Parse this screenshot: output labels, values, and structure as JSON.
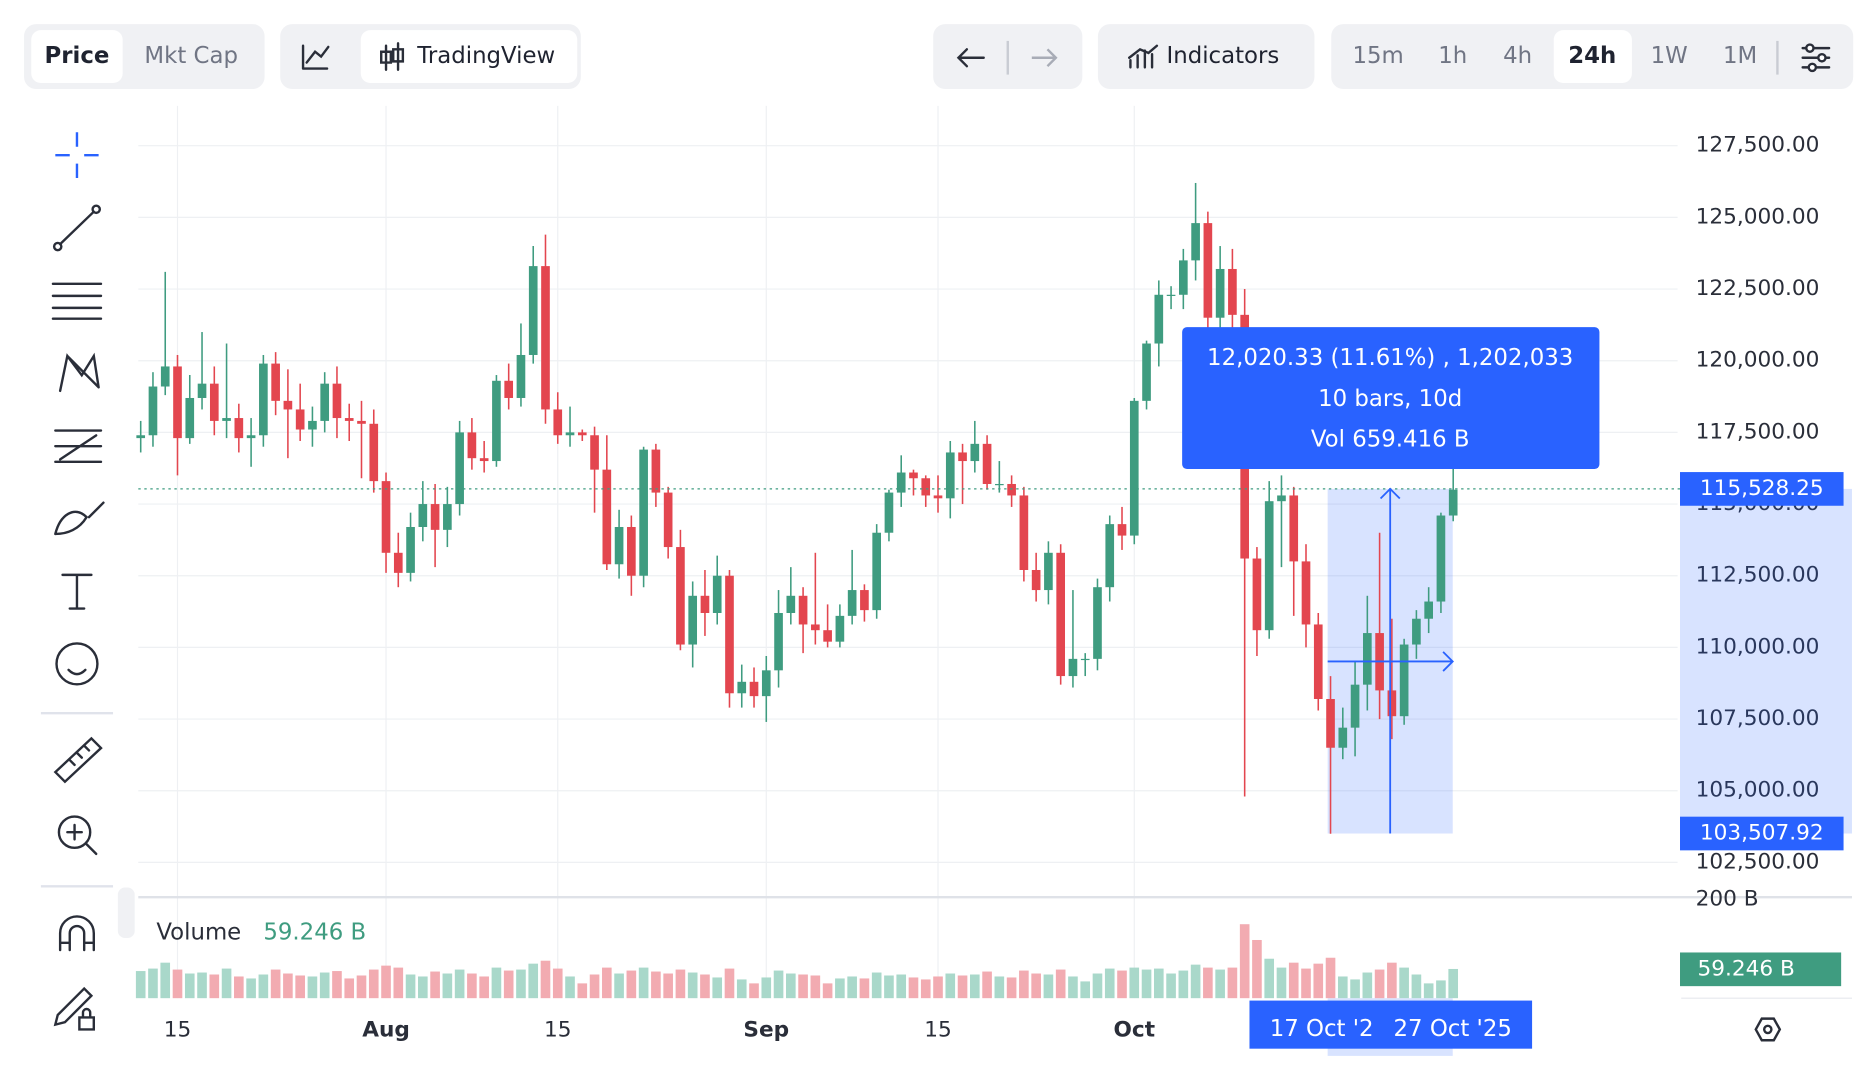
{
  "toolbar": {
    "tabs": [
      "Price",
      "Mkt Cap"
    ],
    "chart_style": "TradingView",
    "indicators": "Indicators",
    "intervals": [
      "15m",
      "1h",
      "4h",
      "24h",
      "1W",
      "1M"
    ]
  },
  "chart_data": {
    "type": "candlestick",
    "up_color": "#3f9c80",
    "down_color": "#e3464f",
    "categories": [
      null,
      null,
      null,
      "15",
      null,
      null,
      null,
      null,
      null,
      null,
      null,
      null,
      null,
      null,
      null,
      null,
      null,
      null,
      null,
      null,
      "Aug",
      null,
      null,
      null,
      null,
      null,
      null,
      null,
      null,
      null,
      null,
      null,
      null,
      null,
      "15",
      null,
      null,
      null,
      null,
      null,
      null,
      null,
      null,
      null,
      null,
      null,
      null,
      null,
      null,
      null,
      null,
      "Sep",
      null,
      null,
      null,
      null,
      null,
      null,
      null,
      null,
      null,
      null,
      null,
      null,
      null,
      "15",
      null,
      null,
      null,
      null,
      null,
      null,
      null,
      null,
      null,
      null,
      null,
      null,
      null,
      null,
      null,
      "Oct",
      null,
      null,
      null,
      null,
      null,
      null,
      null,
      null,
      null,
      null,
      null,
      null,
      null,
      null,
      null,
      null,
      null,
      null,
      null,
      null,
      null,
      null,
      null,
      null,
      null,
      null
    ],
    "ohlc": [
      [
        117300,
        117900,
        116800,
        117400
      ],
      [
        117400,
        119600,
        117000,
        119100
      ],
      [
        119100,
        123100,
        118800,
        119800
      ],
      [
        119800,
        120200,
        116000,
        117300
      ],
      [
        117300,
        119500,
        117100,
        118700
      ],
      [
        118700,
        121000,
        118300,
        119200
      ],
      [
        119200,
        119800,
        117400,
        117900
      ],
      [
        117900,
        120600,
        117300,
        118000
      ],
      [
        118000,
        118500,
        116800,
        117300
      ],
      [
        117300,
        118000,
        116300,
        117400
      ],
      [
        117400,
        120200,
        117000,
        119900
      ],
      [
        119900,
        120300,
        118100,
        118600
      ],
      [
        118600,
        119700,
        116600,
        118300
      ],
      [
        118300,
        119200,
        117200,
        117600
      ],
      [
        117600,
        118400,
        117000,
        117900
      ],
      [
        117900,
        119600,
        117500,
        119200
      ],
      [
        119200,
        119800,
        117300,
        118000
      ],
      [
        118000,
        118500,
        117200,
        117900
      ],
      [
        117900,
        118600,
        115900,
        117800
      ],
      [
        117800,
        118300,
        115400,
        115800
      ],
      [
        115800,
        116100,
        112600,
        113300
      ],
      [
        113300,
        114000,
        112100,
        112600
      ],
      [
        112600,
        114700,
        112300,
        114200
      ],
      [
        114200,
        115800,
        113700,
        115000
      ],
      [
        115000,
        115700,
        112800,
        114100
      ],
      [
        114100,
        115600,
        113500,
        115000
      ],
      [
        115000,
        117900,
        114600,
        117500
      ],
      [
        117500,
        118000,
        116200,
        116600
      ],
      [
        116600,
        117200,
        116100,
        116500
      ],
      [
        116500,
        119500,
        116300,
        119300
      ],
      [
        119300,
        119900,
        118300,
        118700
      ],
      [
        118700,
        121300,
        118400,
        120200
      ],
      [
        120200,
        124000,
        119900,
        123300
      ],
      [
        123300,
        124400,
        117800,
        118300
      ],
      [
        118300,
        118900,
        117100,
        117400
      ],
      [
        117400,
        118400,
        117000,
        117500
      ],
      [
        117500,
        117600,
        117200,
        117400
      ],
      [
        117400,
        117700,
        114700,
        116200
      ],
      [
        116200,
        117400,
        112700,
        112900
      ],
      [
        112900,
        114800,
        112400,
        114200
      ],
      [
        114200,
        114600,
        111800,
        112500
      ],
      [
        112500,
        117000,
        112100,
        116900
      ],
      [
        116900,
        117100,
        114900,
        115400
      ],
      [
        115400,
        115600,
        113100,
        113500
      ],
      [
        113500,
        114100,
        109900,
        110100
      ],
      [
        110100,
        112300,
        109300,
        111800
      ],
      [
        111800,
        112700,
        110400,
        111200
      ],
      [
        111200,
        113200,
        110800,
        112500
      ],
      [
        112500,
        112700,
        107900,
        108400
      ],
      [
        108400,
        109400,
        107900,
        108800
      ],
      [
        108800,
        109300,
        107900,
        108300
      ],
      [
        108300,
        109700,
        107400,
        109200
      ],
      [
        109200,
        112000,
        108600,
        111200
      ],
      [
        111200,
        112800,
        110800,
        111800
      ],
      [
        111800,
        112100,
        109800,
        110800
      ],
      [
        110800,
        113300,
        110100,
        110600
      ],
      [
        110600,
        111500,
        110000,
        110200
      ],
      [
        110200,
        111500,
        110000,
        111100
      ],
      [
        111100,
        113400,
        110800,
        112000
      ],
      [
        112000,
        112200,
        110900,
        111300
      ],
      [
        111300,
        114300,
        111000,
        114000
      ],
      [
        114000,
        115500,
        113700,
        115400
      ],
      [
        115400,
        116700,
        114900,
        116100
      ],
      [
        116100,
        116200,
        115300,
        115900
      ],
      [
        115900,
        116000,
        114900,
        115300
      ],
      [
        115300,
        116000,
        114700,
        115200
      ],
      [
        115200,
        117200,
        114500,
        116800
      ],
      [
        116800,
        117100,
        115000,
        116500
      ],
      [
        116500,
        117900,
        116100,
        117100
      ],
      [
        117100,
        117400,
        115500,
        115700
      ],
      [
        115700,
        116500,
        115400,
        115700
      ],
      [
        115700,
        116000,
        114900,
        115300
      ],
      [
        115300,
        115600,
        112300,
        112700
      ],
      [
        112700,
        113300,
        111600,
        112000
      ],
      [
        112000,
        113700,
        111500,
        113300
      ],
      [
        113300,
        113600,
        108700,
        109000
      ],
      [
        109000,
        112000,
        108600,
        109600
      ],
      [
        109600,
        109800,
        109000,
        109600
      ],
      [
        109600,
        112400,
        109200,
        112100
      ],
      [
        112100,
        114600,
        111600,
        114300
      ],
      [
        114300,
        114900,
        113400,
        113900
      ],
      [
        113900,
        118700,
        113600,
        118600
      ],
      [
        118600,
        120700,
        118300,
        120600
      ],
      [
        120600,
        122800,
        119800,
        122300
      ],
      [
        122300,
        122600,
        121800,
        122300
      ],
      [
        122300,
        123900,
        121800,
        123500
      ],
      [
        123500,
        126200,
        122800,
        124800
      ],
      [
        124800,
        125200,
        121000,
        121500
      ],
      [
        121500,
        124000,
        121000,
        123200
      ],
      [
        123200,
        123900,
        120700,
        121600
      ],
      [
        121600,
        122500,
        104800,
        113100
      ],
      [
        113100,
        113500,
        109700,
        110600
      ],
      [
        110600,
        115800,
        110300,
        115100
      ],
      [
        115100,
        116000,
        112800,
        115300
      ],
      [
        115300,
        115600,
        111100,
        113000
      ],
      [
        113000,
        113600,
        110000,
        110800
      ],
      [
        110800,
        111200,
        107800,
        108200
      ],
      [
        108200,
        109000,
        103500,
        106500
      ],
      [
        106500,
        107900,
        106100,
        107200
      ],
      [
        107200,
        109500,
        106200,
        108700
      ],
      [
        108700,
        111800,
        107800,
        110500
      ],
      [
        110500,
        114000,
        107500,
        108500
      ],
      [
        108500,
        111000,
        106800,
        107600
      ],
      [
        107600,
        110300,
        107300,
        110100
      ],
      [
        110100,
        111300,
        109600,
        111000
      ],
      [
        111000,
        112100,
        110500,
        111600
      ],
      [
        111600,
        114700,
        111200,
        114600
      ],
      [
        114600,
        116600,
        114400,
        115500
      ]
    ],
    "ylim": [
      101330,
      128890
    ],
    "yticks": [
      {
        "value": 127500,
        "label": "127,500.00"
      },
      {
        "value": 125000,
        "label": "125,000.00"
      },
      {
        "value": 122500,
        "label": "122,500.00"
      },
      {
        "value": 120000,
        "label": "120,000.00"
      },
      {
        "value": 117500,
        "label": "117,500.00"
      },
      {
        "value": 115000,
        "label": "115,000.00"
      },
      {
        "value": 112500,
        "label": "112,500.00"
      },
      {
        "value": 110000,
        "label": "110,000.00"
      },
      {
        "value": 107500,
        "label": "107,500.00"
      },
      {
        "value": 105000,
        "label": "105,000.00"
      },
      {
        "value": 102500,
        "label": "102,500.00"
      }
    ],
    "grid": true,
    "last_price": {
      "value": 115528.25,
      "label": "115,528.25"
    },
    "volume": {
      "label": "Volume",
      "last_label": "59.246 B",
      "up_color": "#a9d8ca",
      "down_color": "#f2abb1",
      "ylim": [
        0,
        200
      ],
      "yticks": [
        {
          "value": 200,
          "label": "200 B"
        }
      ],
      "values": [
        55,
        60,
        72,
        58,
        50,
        52,
        48,
        60,
        44,
        40,
        48,
        58,
        50,
        46,
        44,
        52,
        55,
        40,
        46,
        58,
        66,
        62,
        48,
        44,
        54,
        50,
        58,
        50,
        44,
        62,
        56,
        58,
        70,
        76,
        60,
        44,
        30,
        48,
        62,
        50,
        56,
        62,
        54,
        50,
        58,
        52,
        48,
        42,
        60,
        38,
        30,
        42,
        56,
        50,
        48,
        46,
        30,
        40,
        44,
        40,
        52,
        46,
        48,
        42,
        38,
        44,
        50,
        46,
        48,
        54,
        44,
        42,
        56,
        50,
        48,
        58,
        44,
        34,
        50,
        60,
        56,
        62,
        58,
        60,
        50,
        56,
        68,
        62,
        58,
        62,
        150,
        118,
        80,
        62,
        72,
        60,
        70,
        82,
        44,
        38,
        52,
        58,
        72,
        62,
        48,
        30,
        36,
        59.246
      ]
    },
    "measure": {
      "lines": [
        "12,020.33 (11.61%) , 1,202,033",
        "10 bars, 10d",
        "Vol 659.416 B"
      ],
      "low": {
        "value": 103507.92,
        "label": "103,507.92"
      },
      "start_date": "17 Oct '2",
      "end_date": "27 Oct '25"
    }
  }
}
